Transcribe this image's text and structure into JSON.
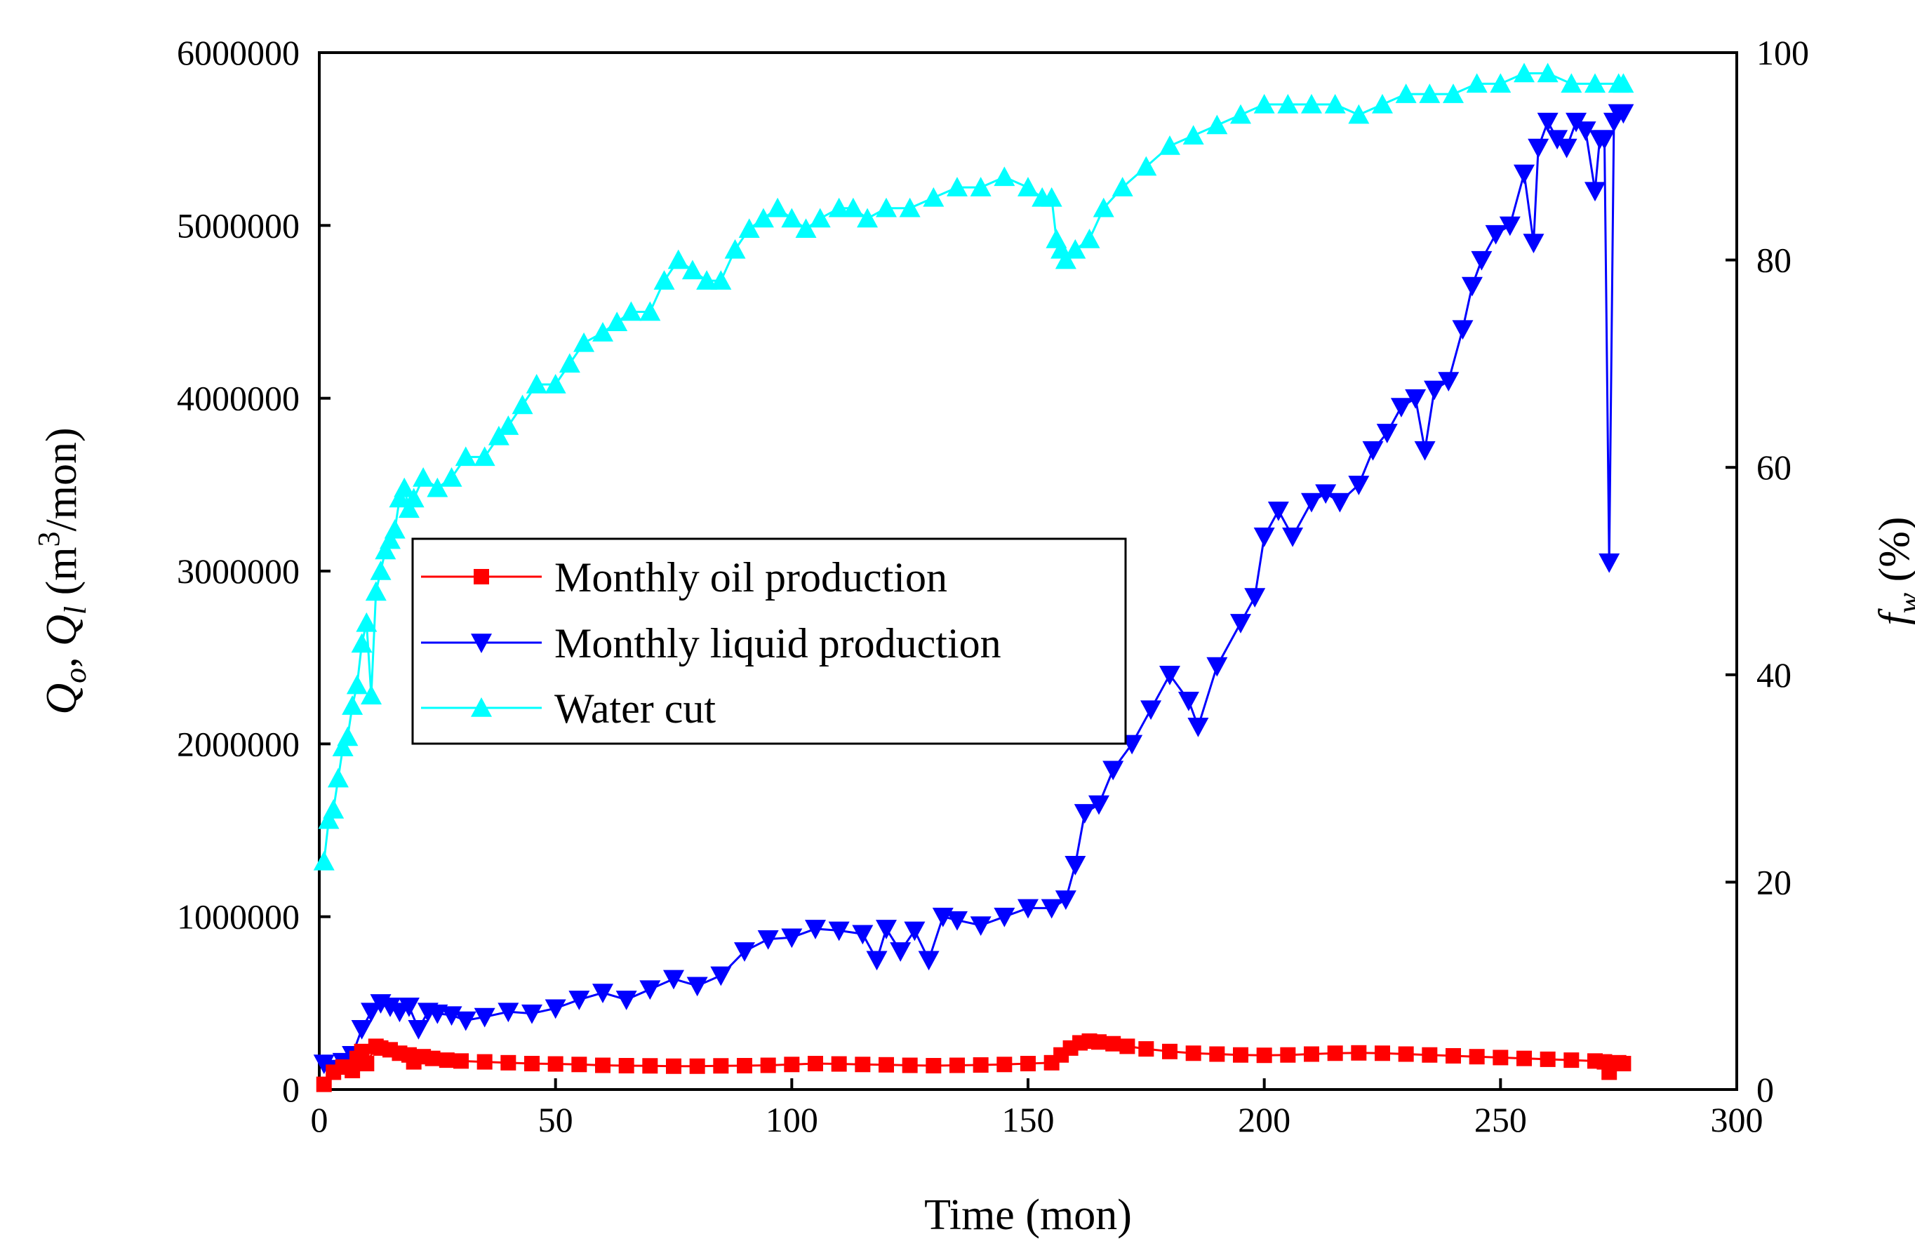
{
  "chart_data": {
    "type": "line",
    "xlabel": "Time (mon)",
    "ylabel_left": {
      "q1": "Q",
      "s1": "o",
      "sep": ", ",
      "q2": "Q",
      "s2": "l",
      "unit_a": " (m",
      "unit_exp": "3",
      "unit_b": "/mon)"
    },
    "ylabel_right": {
      "f": "f",
      "sub": "w",
      "unit": " (%)"
    },
    "xlim": [
      0,
      300
    ],
    "ylim_left": [
      0,
      6000000
    ],
    "ylim_right": [
      0,
      100
    ],
    "x_ticks": [
      "0",
      "50",
      "100",
      "150",
      "200",
      "250",
      "300"
    ],
    "y_left_ticks": [
      "0",
      "1000000",
      "2000000",
      "3000000",
      "4000000",
      "5000000",
      "6000000"
    ],
    "y_right_ticks": [
      "0",
      "20",
      "40",
      "60",
      "80",
      "100"
    ],
    "legend": {
      "placement": "center-left",
      "entries": [
        "Monthly oil production",
        "Monthly liquid production",
        "Water cut"
      ]
    },
    "series": [
      {
        "name": "Monthly oil production",
        "axis": "left",
        "color": "#ff0000",
        "marker": "square",
        "x": [
          1,
          3,
          5,
          7,
          8,
          9,
          10,
          12,
          13,
          15,
          17,
          19,
          20,
          22,
          24,
          27,
          30,
          35,
          40,
          45,
          50,
          55,
          60,
          65,
          70,
          75,
          80,
          85,
          90,
          95,
          100,
          105,
          110,
          115,
          120,
          125,
          130,
          135,
          140,
          145,
          150,
          155,
          157,
          159,
          161,
          163,
          165,
          168,
          171,
          175,
          180,
          185,
          190,
          195,
          200,
          205,
          210,
          215,
          220,
          225,
          230,
          235,
          240,
          245,
          250,
          255,
          260,
          265,
          270,
          272,
          273,
          275,
          276
        ],
        "y": [
          30000,
          100000,
          130000,
          110000,
          180000,
          220000,
          150000,
          250000,
          240000,
          230000,
          210000,
          200000,
          160000,
          190000,
          180000,
          170000,
          165000,
          160000,
          155000,
          150000,
          148000,
          145000,
          140000,
          138000,
          137000,
          135000,
          135000,
          137000,
          138000,
          140000,
          145000,
          150000,
          148000,
          145000,
          143000,
          140000,
          138000,
          140000,
          142000,
          145000,
          150000,
          155000,
          200000,
          240000,
          270000,
          280000,
          275000,
          265000,
          250000,
          235000,
          220000,
          210000,
          205000,
          200000,
          198000,
          200000,
          205000,
          210000,
          212000,
          210000,
          205000,
          200000,
          195000,
          190000,
          185000,
          180000,
          175000,
          170000,
          165000,
          160000,
          100000,
          155000,
          150000
        ]
      },
      {
        "name": "Monthly liquid production",
        "axis": "left",
        "color": "#0000ff",
        "marker": "triangle-down",
        "x": [
          1,
          3,
          5,
          7,
          9,
          11,
          13,
          15,
          17,
          19,
          21,
          23,
          25,
          28,
          31,
          35,
          40,
          45,
          50,
          55,
          60,
          65,
          70,
          75,
          80,
          85,
          90,
          95,
          100,
          105,
          110,
          115,
          118,
          120,
          123,
          126,
          129,
          132,
          135,
          140,
          145,
          150,
          155,
          158,
          160,
          162,
          165,
          168,
          172,
          176,
          180,
          184,
          186,
          190,
          195,
          198,
          200,
          203,
          206,
          210,
          213,
          216,
          220,
          223,
          226,
          229,
          232,
          234,
          236,
          239,
          242,
          244,
          246,
          249,
          252,
          255,
          257,
          258,
          260,
          262,
          264,
          266,
          268,
          270,
          271,
          272,
          273,
          274,
          275,
          276
        ],
        "y": [
          150000,
          120000,
          160000,
          200000,
          350000,
          450000,
          500000,
          480000,
          450000,
          480000,
          350000,
          450000,
          440000,
          430000,
          400000,
          420000,
          450000,
          440000,
          470000,
          520000,
          560000,
          520000,
          580000,
          640000,
          600000,
          660000,
          800000,
          870000,
          880000,
          930000,
          920000,
          900000,
          750000,
          930000,
          800000,
          920000,
          750000,
          1000000,
          980000,
          950000,
          1000000,
          1050000,
          1050000,
          1100000,
          1300000,
          1600000,
          1650000,
          1850000,
          2000000,
          2200000,
          2400000,
          2250000,
          2100000,
          2450000,
          2700000,
          2850000,
          3200000,
          3350000,
          3200000,
          3400000,
          3450000,
          3400000,
          3500000,
          3700000,
          3800000,
          3950000,
          4000000,
          3700000,
          4050000,
          4100000,
          4400000,
          4650000,
          4800000,
          4950000,
          5000000,
          5300000,
          4900000,
          5450000,
          5600000,
          5500000,
          5450000,
          5600000,
          5550000,
          5200000,
          5500000,
          5500000,
          3050000,
          5600000,
          5650000,
          5650000
        ]
      },
      {
        "name": "Water cut",
        "axis": "right",
        "color": "#00ffff",
        "marker": "triangle-up",
        "x": [
          1,
          2,
          3,
          4,
          5,
          6,
          7,
          8,
          9,
          10,
          11,
          12,
          13,
          14,
          15,
          16,
          17,
          18,
          19,
          20,
          22,
          25,
          28,
          31,
          35,
          38,
          40,
          43,
          46,
          50,
          53,
          56,
          60,
          63,
          66,
          70,
          73,
          76,
          79,
          82,
          85,
          88,
          91,
          94,
          97,
          100,
          103,
          106,
          110,
          113,
          116,
          120,
          125,
          130,
          135,
          140,
          145,
          150,
          153,
          155,
          156,
          157,
          158,
          160,
          163,
          166,
          170,
          175,
          180,
          185,
          190,
          195,
          200,
          205,
          210,
          215,
          220,
          225,
          230,
          235,
          240,
          245,
          250,
          255,
          260,
          265,
          270,
          275,
          276
        ],
        "y": [
          22,
          26,
          27,
          30,
          33,
          34,
          37,
          39,
          43,
          45,
          38,
          48,
          50,
          52,
          53,
          54,
          57,
          58,
          56,
          57,
          59,
          58,
          59,
          61,
          61,
          63,
          64,
          66,
          68,
          68,
          70,
          72,
          73,
          74,
          75,
          75,
          78,
          80,
          79,
          78,
          78,
          81,
          83,
          84,
          85,
          84,
          83,
          84,
          85,
          85,
          84,
          85,
          85,
          86,
          87,
          87,
          88,
          87,
          86,
          86,
          82,
          81,
          80,
          81,
          82,
          85,
          87,
          89,
          91,
          92,
          93,
          94,
          95,
          95,
          95,
          95,
          94,
          95,
          96,
          96,
          96,
          97,
          97,
          98,
          98,
          97,
          97,
          97,
          97
        ]
      }
    ]
  }
}
